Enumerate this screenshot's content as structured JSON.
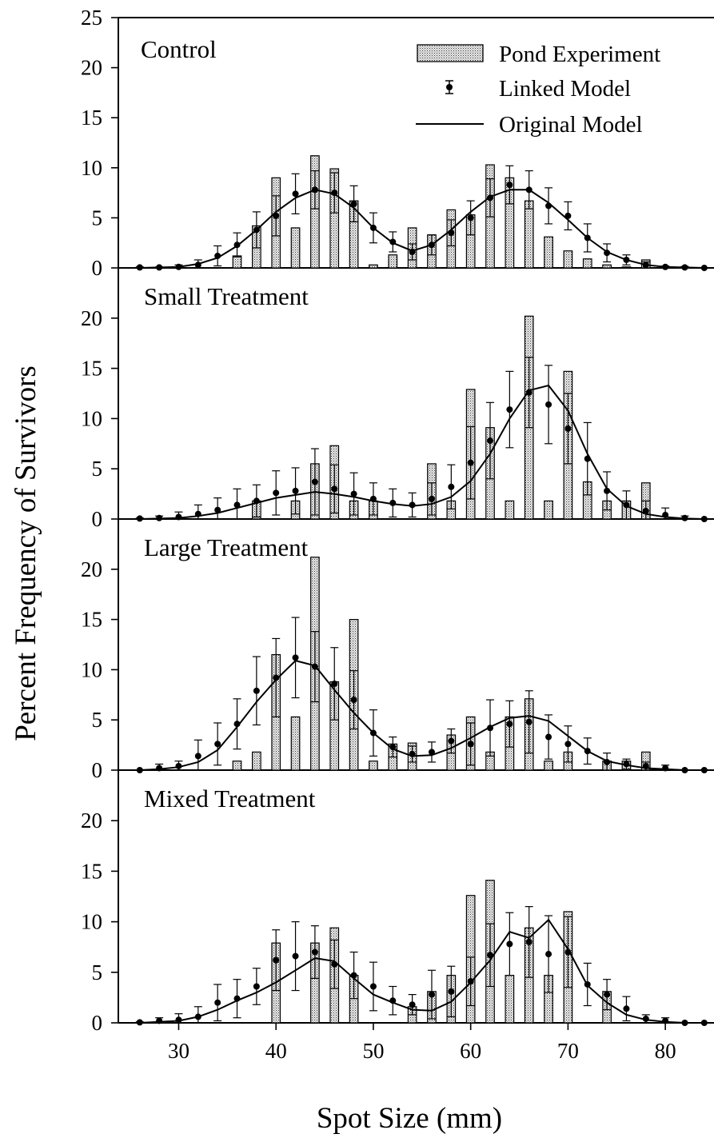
{
  "chart_data": {
    "type": "bar",
    "xlabel": "Spot Size (mm)",
    "ylabel": "Percent Frequency of Survivors",
    "x_ticks": [
      30,
      40,
      50,
      60,
      70,
      80
    ],
    "xlim": [
      23.8,
      85
    ],
    "legend": {
      "placement": "top-right",
      "entries": [
        "Pond Experiment",
        "Linked Model",
        "Original Model"
      ]
    },
    "panels": [
      {
        "title": "Control",
        "ylim": [
          0,
          25
        ],
        "y_ticks": [
          "0",
          "5",
          "10",
          "15",
          "20",
          "25"
        ],
        "pond": {
          "x": [
            36,
            38,
            40,
            42,
            44,
            46,
            48,
            50,
            52,
            54,
            56,
            58,
            60,
            62,
            64,
            66,
            68,
            70,
            72,
            74,
            76,
            78
          ],
          "values": [
            1.2,
            4.2,
            9.0,
            4.0,
            11.2,
            9.9,
            6.7,
            0.3,
            1.3,
            4.0,
            3.3,
            5.8,
            5.3,
            10.3,
            9.0,
            6.7,
            3.1,
            1.7,
            0.9,
            0.3,
            0.1,
            0.8
          ]
        },
        "linked": {
          "x": [
            26,
            28,
            30,
            32,
            34,
            36,
            38,
            40,
            42,
            44,
            46,
            48,
            50,
            52,
            54,
            56,
            58,
            60,
            62,
            64,
            66,
            68,
            70,
            72,
            74,
            76,
            78,
            80,
            82,
            84
          ],
          "y": [
            0.05,
            0.05,
            0.1,
            0.3,
            1.2,
            2.3,
            3.8,
            5.2,
            7.4,
            7.8,
            7.5,
            6.4,
            4.0,
            2.6,
            1.6,
            2.3,
            3.5,
            5.0,
            7.0,
            8.3,
            7.8,
            6.2,
            5.2,
            3.0,
            1.5,
            0.8,
            0.3,
            0.1,
            0.05,
            0.0
          ],
          "err": [
            0.05,
            0.05,
            0.2,
            0.5,
            1.0,
            1.2,
            1.8,
            2.0,
            2.0,
            1.9,
            2.0,
            1.8,
            1.5,
            1.0,
            0.8,
            1.0,
            1.3,
            1.7,
            1.9,
            1.9,
            1.9,
            1.8,
            1.4,
            1.4,
            0.9,
            0.5,
            0.3,
            0.1,
            0.1,
            0.0
          ]
        },
        "original": {
          "x": [
            26,
            28,
            30,
            32,
            34,
            36,
            38,
            40,
            42,
            44,
            46,
            48,
            50,
            52,
            54,
            56,
            58,
            60,
            62,
            64,
            66,
            68,
            70,
            72,
            74,
            76,
            78,
            80,
            82,
            84
          ],
          "y": [
            0.0,
            0.05,
            0.1,
            0.4,
            1.0,
            2.2,
            3.8,
            5.6,
            7.0,
            7.8,
            7.4,
            6.0,
            4.0,
            2.5,
            1.7,
            2.3,
            3.8,
            5.6,
            7.1,
            7.8,
            7.8,
            6.5,
            4.8,
            3.0,
            1.6,
            0.8,
            0.3,
            0.1,
            0.05,
            0.0
          ]
        }
      },
      {
        "title": "Small Treatment",
        "ylim": [
          0,
          25
        ],
        "y_ticks": [
          "0",
          "5",
          "10",
          "15",
          "20"
        ],
        "pond": {
          "x": [
            38,
            42,
            44,
            46,
            48,
            50,
            56,
            58,
            60,
            62,
            64,
            66,
            68,
            70,
            72,
            74,
            76,
            78
          ],
          "values": [
            1.8,
            1.8,
            5.5,
            7.3,
            1.8,
            1.8,
            5.5,
            1.8,
            12.9,
            9.1,
            1.8,
            20.2,
            1.8,
            14.7,
            3.7,
            1.8,
            1.8,
            3.6
          ]
        },
        "linked": {
          "x": [
            26,
            28,
            30,
            32,
            34,
            36,
            38,
            40,
            42,
            44,
            46,
            48,
            50,
            52,
            54,
            56,
            58,
            60,
            62,
            64,
            66,
            68,
            70,
            72,
            74,
            76,
            78,
            80,
            82,
            84
          ],
          "y": [
            0.05,
            0.1,
            0.2,
            0.5,
            0.9,
            1.4,
            1.8,
            2.6,
            2.8,
            3.7,
            3.0,
            2.5,
            2.0,
            1.6,
            1.4,
            2.0,
            3.2,
            5.6,
            7.8,
            10.9,
            12.6,
            11.4,
            9.0,
            6.0,
            2.8,
            1.4,
            0.8,
            0.4,
            0.1,
            0.0
          ],
          "err": [
            0.05,
            0.2,
            0.5,
            0.9,
            1.2,
            1.6,
            1.6,
            2.2,
            2.3,
            3.3,
            2.4,
            2.1,
            1.6,
            1.4,
            1.2,
            1.6,
            2.2,
            3.6,
            3.8,
            3.8,
            3.5,
            3.9,
            3.5,
            3.6,
            1.9,
            1.4,
            1.0,
            0.7,
            0.2,
            0.0
          ]
        },
        "original": {
          "x": [
            26,
            28,
            30,
            32,
            34,
            36,
            38,
            40,
            42,
            44,
            46,
            48,
            50,
            52,
            54,
            56,
            58,
            60,
            62,
            64,
            66,
            68,
            70,
            72,
            74,
            76,
            78,
            80,
            82,
            84
          ],
          "y": [
            0.0,
            0.05,
            0.1,
            0.3,
            0.6,
            1.1,
            1.6,
            2.1,
            2.4,
            2.7,
            2.5,
            2.2,
            1.8,
            1.5,
            1.3,
            1.5,
            2.2,
            3.8,
            6.5,
            10.0,
            12.8,
            13.3,
            10.8,
            6.5,
            3.0,
            1.3,
            0.5,
            0.2,
            0.05,
            0.0
          ]
        }
      },
      {
        "title": "Large Treatment",
        "ylim": [
          0,
          25
        ],
        "y_ticks": [
          "0",
          "5",
          "10",
          "15",
          "20"
        ],
        "pond": {
          "x": [
            36,
            38,
            40,
            42,
            44,
            46,
            48,
            50,
            52,
            54,
            58,
            60,
            62,
            64,
            66,
            68,
            70,
            74,
            76,
            78
          ],
          "values": [
            0.9,
            1.8,
            11.5,
            5.3,
            21.2,
            8.8,
            15.0,
            0.9,
            2.6,
            2.7,
            3.5,
            5.3,
            1.8,
            5.3,
            7.1,
            0.9,
            1.8,
            0.9,
            0.9,
            1.8
          ]
        },
        "linked": {
          "x": [
            26,
            28,
            30,
            32,
            34,
            36,
            38,
            40,
            42,
            44,
            46,
            48,
            50,
            52,
            54,
            56,
            58,
            60,
            62,
            64,
            66,
            68,
            70,
            72,
            74,
            76,
            78,
            80,
            82,
            84
          ],
          "y": [
            0.0,
            0.2,
            0.4,
            1.4,
            2.6,
            4.6,
            7.9,
            9.2,
            11.2,
            10.3,
            8.6,
            7.0,
            3.7,
            2.3,
            1.6,
            1.8,
            2.9,
            2.6,
            4.2,
            4.6,
            4.8,
            3.3,
            2.6,
            1.9,
            0.8,
            0.6,
            0.4,
            0.2,
            0.0,
            0.0
          ],
          "err": [
            0.0,
            0.4,
            0.5,
            1.6,
            2.1,
            2.5,
            3.4,
            3.9,
            4.0,
            3.5,
            3.6,
            2.9,
            2.3,
            1.0,
            0.8,
            1.0,
            1.2,
            2.1,
            2.8,
            2.3,
            3.1,
            2.2,
            1.8,
            1.3,
            0.9,
            0.5,
            0.4,
            0.3,
            0.0,
            0.0
          ]
        },
        "original": {
          "x": [
            26,
            28,
            30,
            32,
            34,
            36,
            38,
            40,
            42,
            44,
            46,
            48,
            50,
            52,
            54,
            56,
            58,
            60,
            62,
            64,
            66,
            68,
            70,
            72,
            74,
            76,
            78,
            80,
            82,
            84
          ],
          "y": [
            0.0,
            0.1,
            0.3,
            0.8,
            2.0,
            4.3,
            6.8,
            9.0,
            10.9,
            10.4,
            8.0,
            5.7,
            3.7,
            2.1,
            1.4,
            1.5,
            2.2,
            3.2,
            4.3,
            5.2,
            5.4,
            4.9,
            3.4,
            1.9,
            0.9,
            0.5,
            0.2,
            0.1,
            0.0,
            0.0
          ]
        }
      },
      {
        "title": "Mixed Treatment",
        "ylim": [
          0,
          25
        ],
        "y_ticks": [
          "0",
          "5",
          "10",
          "15",
          "20"
        ],
        "pond": {
          "x": [
            40,
            44,
            46,
            48,
            54,
            56,
            58,
            60,
            62,
            64,
            66,
            68,
            70,
            74
          ],
          "values": [
            7.9,
            7.9,
            9.4,
            4.7,
            1.6,
            3.1,
            4.7,
            12.6,
            14.1,
            4.7,
            9.4,
            4.7,
            11.0,
            3.1
          ]
        },
        "linked": {
          "x": [
            26,
            28,
            30,
            32,
            34,
            36,
            38,
            40,
            42,
            44,
            46,
            48,
            50,
            52,
            54,
            56,
            58,
            60,
            62,
            64,
            66,
            68,
            70,
            72,
            74,
            76,
            78,
            80,
            82,
            84
          ],
          "y": [
            0.05,
            0.2,
            0.3,
            0.6,
            2.0,
            2.4,
            3.6,
            6.2,
            6.6,
            7.0,
            5.8,
            4.7,
            3.6,
            2.2,
            1.8,
            2.8,
            3.1,
            4.1,
            6.7,
            7.8,
            8.0,
            6.8,
            7.0,
            3.8,
            2.8,
            1.4,
            0.4,
            0.2,
            0.0,
            0.0
          ],
          "err": [
            0.05,
            0.3,
            0.6,
            1.0,
            1.8,
            1.9,
            1.8,
            3.0,
            3.4,
            2.6,
            2.4,
            2.3,
            2.4,
            1.4,
            1.0,
            2.4,
            2.5,
            2.4,
            3.1,
            3.1,
            3.5,
            3.8,
            3.5,
            2.1,
            1.5,
            1.2,
            0.4,
            0.3,
            0.0,
            0.0
          ]
        },
        "original": {
          "x": [
            26,
            28,
            30,
            32,
            34,
            36,
            38,
            40,
            42,
            44,
            46,
            48,
            50,
            52,
            54,
            56,
            58,
            60,
            62,
            64,
            66,
            68,
            70,
            72,
            74,
            76,
            78,
            80,
            82,
            84
          ],
          "y": [
            0.0,
            0.1,
            0.2,
            0.6,
            1.3,
            2.2,
            3.0,
            4.0,
            5.2,
            6.4,
            6.1,
            4.4,
            2.8,
            2.0,
            1.3,
            1.2,
            2.1,
            4.0,
            6.2,
            9.0,
            8.4,
            10.2,
            7.3,
            3.7,
            2.0,
            0.8,
            0.3,
            0.1,
            0.0,
            0.0
          ]
        }
      }
    ]
  }
}
